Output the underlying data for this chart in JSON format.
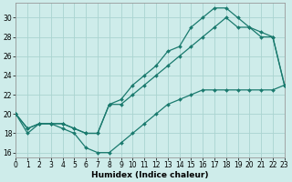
{
  "title": "",
  "xlabel": "Humidex (Indice chaleur)",
  "background_color": "#ceecea",
  "grid_color": "#aad4d0",
  "line_color": "#1a7a6e",
  "xlim": [
    0,
    23
  ],
  "ylim": [
    15.5,
    31.5
  ],
  "xticks": [
    0,
    1,
    2,
    3,
    4,
    5,
    6,
    7,
    8,
    9,
    10,
    11,
    12,
    13,
    14,
    15,
    16,
    17,
    18,
    19,
    20,
    21,
    22,
    23
  ],
  "yticks": [
    16,
    18,
    20,
    22,
    24,
    26,
    28,
    30
  ],
  "line1_x": [
    0,
    1,
    2,
    3,
    4,
    5,
    6,
    7,
    8,
    9,
    10,
    11,
    12,
    13,
    14,
    15,
    16,
    17,
    18,
    19,
    20,
    21,
    22,
    23
  ],
  "line1_y": [
    20,
    18,
    19,
    19,
    18.5,
    18,
    16.5,
    16,
    16,
    17,
    18,
    19,
    20,
    21,
    21.5,
    22,
    22.5,
    22.5,
    22.5,
    22.5,
    22.5,
    22.5,
    22.5,
    23
  ],
  "line2_x": [
    0,
    1,
    2,
    3,
    4,
    5,
    6,
    7,
    8,
    9,
    10,
    11,
    12,
    13,
    14,
    15,
    16,
    17,
    18,
    19,
    20,
    21,
    22,
    23
  ],
  "line2_y": [
    20,
    18.5,
    19,
    19,
    19,
    18.5,
    18,
    18,
    21,
    21,
    22,
    23,
    24,
    25,
    26,
    27,
    28,
    29,
    30,
    29,
    29,
    28,
    28,
    23
  ],
  "line3_x": [
    0,
    1,
    2,
    3,
    4,
    5,
    6,
    7,
    8,
    9,
    10,
    11,
    12,
    13,
    14,
    15,
    16,
    17,
    18,
    19,
    20,
    21,
    22,
    23
  ],
  "line3_y": [
    20,
    18.5,
    19,
    19,
    19,
    18.5,
    18,
    18,
    21,
    21.5,
    23,
    24,
    25,
    26.5,
    27,
    29,
    30,
    31,
    31,
    30,
    29,
    28.5,
    28,
    23
  ],
  "marker": "D",
  "marker_size": 2.0,
  "line_width": 0.9,
  "tick_fontsize": 5.5,
  "xlabel_fontsize": 6.5
}
